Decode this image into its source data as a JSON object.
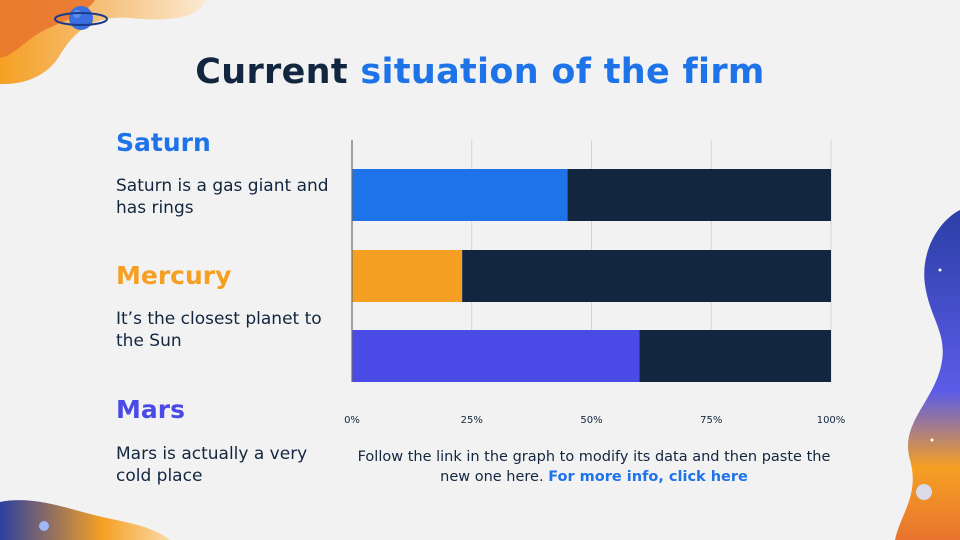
{
  "title": {
    "part1": "Current",
    "part2": "situation of the firm"
  },
  "items": [
    {
      "name": "Saturn",
      "desc": "Saturn is a gas giant and has rings",
      "color": "#1e73e8"
    },
    {
      "name": "Mercury",
      "desc": "It’s the closest planet to the Sun",
      "color": "#f5a023"
    },
    {
      "name": "Mars",
      "desc": "Mars is actually a very cold place",
      "color": "#4a4ae6"
    }
  ],
  "footer": {
    "text": "Follow the link in the graph to modify its data and then paste the new one here.",
    "link": "For more info, click here"
  },
  "chart_data": {
    "type": "bar",
    "orientation": "horizontal",
    "stacked": "100%",
    "categories": [
      "Saturn",
      "Mercury",
      "Mars"
    ],
    "series": [
      {
        "values": [
          45,
          23,
          60
        ],
        "colors": [
          "#1e73e8",
          "#f5a023",
          "#4a4ae6"
        ]
      },
      {
        "values": [
          55,
          77,
          40
        ],
        "color": "#12263f"
      }
    ],
    "xlim": [
      0,
      100
    ],
    "xticks": [
      "0%",
      "25%",
      "50%",
      "75%",
      "100%"
    ],
    "grid": true,
    "legend": "none",
    "title": "",
    "xlabel": "",
    "ylabel": ""
  }
}
